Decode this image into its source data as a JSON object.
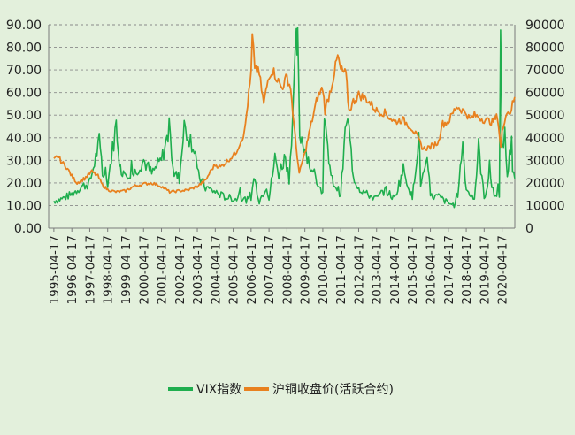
{
  "chart_data": {
    "type": "line",
    "title": "",
    "xlabel": "",
    "ylabel_left": "",
    "ylabel_right": "",
    "ylim_left": [
      0,
      90
    ],
    "ylim_right": [
      0,
      90000
    ],
    "yticks_left": [
      "0.00",
      "10.00",
      "20.00",
      "30.00",
      "40.00",
      "50.00",
      "60.00",
      "70.00",
      "80.00",
      "90.00"
    ],
    "yticks_right": [
      "0",
      "10000",
      "20000",
      "30000",
      "40000",
      "50000",
      "60000",
      "70000",
      "80000",
      "90000"
    ],
    "xticks": [
      "1995-04-17",
      "1996-04-17",
      "1997-04-17",
      "1998-04-17",
      "1999-04-17",
      "2000-04-17",
      "2001-04-17",
      "2002-04-17",
      "2003-04-17",
      "2004-04-17",
      "2005-04-17",
      "2006-04-17",
      "2007-04-17",
      "2008-04-17",
      "2009-04-17",
      "2010-04-17",
      "2011-04-17",
      "2012-04-17",
      "2013-04-17",
      "2014-04-17",
      "2015-04-17",
      "2016-04-17",
      "2017-04-17",
      "2018-04-17",
      "2019-04-17",
      "2020-04-17"
    ],
    "grid": "horizontal dashed",
    "legend": "bottom",
    "series": [
      {
        "name": "VIX指数",
        "axis": "left",
        "color": "#1fae4e",
        "points": [
          [
            "1995-04-17",
            12
          ],
          [
            "1995-10-01",
            13
          ],
          [
            "1996-04-17",
            15
          ],
          [
            "1996-10-01",
            18
          ],
          [
            "1997-04-17",
            20
          ],
          [
            "1997-10-28",
            38
          ],
          [
            "1998-01-01",
            24
          ],
          [
            "1998-04-17",
            20
          ],
          [
            "1998-10-08",
            46
          ],
          [
            "1999-01-01",
            26
          ],
          [
            "1999-04-17",
            25
          ],
          [
            "1999-10-01",
            24
          ],
          [
            "2000-04-17",
            30
          ],
          [
            "2000-10-01",
            24
          ],
          [
            "2001-04-17",
            30
          ],
          [
            "2001-09-20",
            43
          ],
          [
            "2002-01-01",
            24
          ],
          [
            "2002-04-17",
            22
          ],
          [
            "2002-07-24",
            45
          ],
          [
            "2002-10-10",
            42
          ],
          [
            "2003-03-11",
            34
          ],
          [
            "2003-04-17",
            24
          ],
          [
            "2003-10-01",
            18
          ],
          [
            "2004-04-17",
            16
          ],
          [
            "2004-10-01",
            14
          ],
          [
            "2005-04-17",
            13
          ],
          [
            "2005-10-01",
            13
          ],
          [
            "2006-04-17",
            12
          ],
          [
            "2006-06-13",
            23
          ],
          [
            "2006-10-01",
            12
          ],
          [
            "2007-02-27",
            19
          ],
          [
            "2007-04-17",
            13
          ],
          [
            "2007-08-16",
            31
          ],
          [
            "2007-11-01",
            24
          ],
          [
            "2008-03-17",
            32
          ],
          [
            "2008-06-01",
            22
          ],
          [
            "2008-10-24",
            80
          ],
          [
            "2008-11-20",
            81
          ],
          [
            "2009-01-01",
            42
          ],
          [
            "2009-04-17",
            36
          ],
          [
            "2009-10-01",
            23
          ],
          [
            "2010-04-17",
            16
          ],
          [
            "2010-05-20",
            46
          ],
          [
            "2010-10-01",
            22
          ],
          [
            "2011-04-17",
            15
          ],
          [
            "2011-08-08",
            48
          ],
          [
            "2011-10-03",
            43
          ],
          [
            "2012-01-01",
            23
          ],
          [
            "2012-04-17",
            18
          ],
          [
            "2012-10-01",
            15
          ],
          [
            "2013-04-17",
            13
          ],
          [
            "2013-10-01",
            17
          ],
          [
            "2014-04-17",
            13
          ],
          [
            "2014-10-15",
            26
          ],
          [
            "2015-04-17",
            13
          ],
          [
            "2015-08-24",
            41
          ],
          [
            "2015-10-01",
            20
          ],
          [
            "2016-02-11",
            28
          ],
          [
            "2016-04-17",
            14
          ],
          [
            "2016-10-01",
            14
          ],
          [
            "2017-04-17",
            11
          ],
          [
            "2017-10-01",
            10
          ],
          [
            "2018-02-05",
            37
          ],
          [
            "2018-04-17",
            17
          ],
          [
            "2018-10-01",
            13
          ],
          [
            "2018-12-24",
            36
          ],
          [
            "2019-04-17",
            13
          ],
          [
            "2019-08-05",
            24
          ],
          [
            "2019-12-01",
            13
          ],
          [
            "2020-02-20",
            15
          ],
          [
            "2020-03-16",
            83
          ],
          [
            "2020-04-17",
            38
          ],
          [
            "2020-06-11",
            41
          ],
          [
            "2020-08-01",
            23
          ],
          [
            "2020-10-29",
            40
          ],
          [
            "2020-11-15",
            23
          ],
          [
            "2020-12-31",
            22
          ]
        ]
      },
      {
        "name": "沪铜收盘价(活跃合约)",
        "axis": "right",
        "color": "#e8811f",
        "points": [
          [
            "1995-04-17",
            30000
          ],
          [
            "1995-07-01",
            32000
          ],
          [
            "1995-10-01",
            29000
          ],
          [
            "1996-01-01",
            27000
          ],
          [
            "1996-04-17",
            23000
          ],
          [
            "1996-08-01",
            20000
          ],
          [
            "1997-01-01",
            22000
          ],
          [
            "1997-06-01",
            25000
          ],
          [
            "1997-10-01",
            23000
          ],
          [
            "1998-01-01",
            19000
          ],
          [
            "1998-04-17",
            17000
          ],
          [
            "1998-10-01",
            16000
          ],
          [
            "1999-04-17",
            16500
          ],
          [
            "1999-10-01",
            18500
          ],
          [
            "2000-04-17",
            19500
          ],
          [
            "2000-10-01",
            20000
          ],
          [
            "2001-04-17",
            18500
          ],
          [
            "2001-10-01",
            16000
          ],
          [
            "2002-04-17",
            16500
          ],
          [
            "2002-10-01",
            16800
          ],
          [
            "2003-04-17",
            18500
          ],
          [
            "2003-10-01",
            21000
          ],
          [
            "2004-02-01",
            26000
          ],
          [
            "2004-04-17",
            28000
          ],
          [
            "2004-08-01",
            27000
          ],
          [
            "2005-01-01",
            30000
          ],
          [
            "2005-06-01",
            33000
          ],
          [
            "2005-12-01",
            42000
          ],
          [
            "2006-04-17",
            68000
          ],
          [
            "2006-05-12",
            84000
          ],
          [
            "2006-07-01",
            72000
          ],
          [
            "2006-10-01",
            68000
          ],
          [
            "2007-01-01",
            55000
          ],
          [
            "2007-04-17",
            68000
          ],
          [
            "2007-07-01",
            70000
          ],
          [
            "2007-10-01",
            66000
          ],
          [
            "2008-01-01",
            62000
          ],
          [
            "2008-04-17",
            67000
          ],
          [
            "2008-07-01",
            62000
          ],
          [
            "2008-10-01",
            40000
          ],
          [
            "2008-12-24",
            24000
          ],
          [
            "2009-03-01",
            30000
          ],
          [
            "2009-04-17",
            33000
          ],
          [
            "2009-08-01",
            44000
          ],
          [
            "2010-01-01",
            58000
          ],
          [
            "2010-04-17",
            62000
          ],
          [
            "2010-06-01",
            52000
          ],
          [
            "2010-10-01",
            62000
          ],
          [
            "2011-02-15",
            76000
          ],
          [
            "2011-04-17",
            70000
          ],
          [
            "2011-08-01",
            68000
          ],
          [
            "2011-10-01",
            52000
          ],
          [
            "2012-01-01",
            56000
          ],
          [
            "2012-04-17",
            59000
          ],
          [
            "2012-10-01",
            57000
          ],
          [
            "2013-04-17",
            52000
          ],
          [
            "2013-10-01",
            51000
          ],
          [
            "2014-04-17",
            47000
          ],
          [
            "2014-10-01",
            48000
          ],
          [
            "2015-04-17",
            44000
          ],
          [
            "2015-08-01",
            40000
          ],
          [
            "2015-11-20",
            35000
          ],
          [
            "2016-04-17",
            36000
          ],
          [
            "2016-10-01",
            38000
          ],
          [
            "2016-12-01",
            46000
          ],
          [
            "2017-04-17",
            47000
          ],
          [
            "2017-10-01",
            54000
          ],
          [
            "2018-04-17",
            51000
          ],
          [
            "2018-07-01",
            48000
          ],
          [
            "2018-10-01",
            50000
          ],
          [
            "2019-04-17",
            48000
          ],
          [
            "2019-10-01",
            47000
          ],
          [
            "2020-01-15",
            49500
          ],
          [
            "2020-03-23",
            35500
          ],
          [
            "2020-04-17",
            42000
          ],
          [
            "2020-07-01",
            51000
          ],
          [
            "2020-10-01",
            51500
          ],
          [
            "2020-12-31",
            58000
          ]
        ]
      }
    ]
  }
}
